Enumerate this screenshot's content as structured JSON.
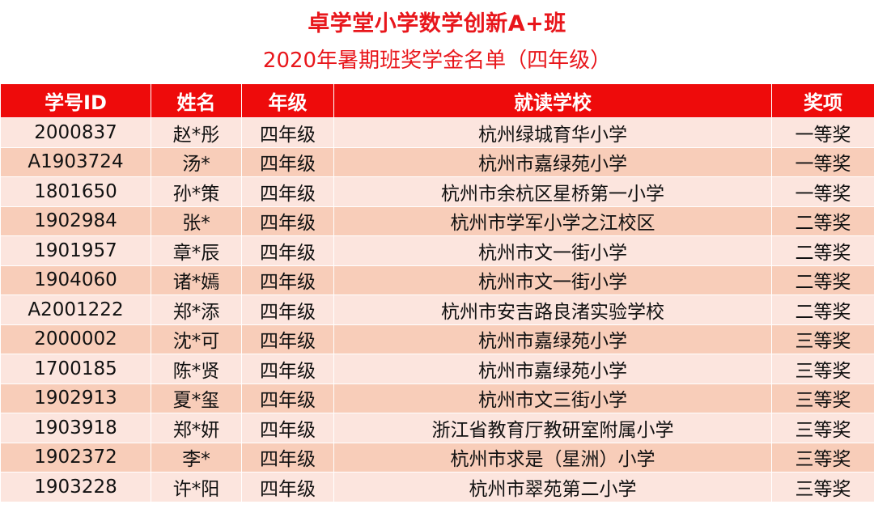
{
  "header": {
    "title": "卓学堂小学数学创新A+班",
    "subtitle": "2020年暑期班奖学金名单（四年级）"
  },
  "table": {
    "columns": [
      "学号ID",
      "姓名",
      "年级",
      "就读学校",
      "奖项"
    ],
    "rows": [
      [
        "2000837",
        "赵*彤",
        "四年级",
        "杭州绿城育华小学",
        "一等奖"
      ],
      [
        "A1903724",
        "汤*",
        "四年级",
        "杭州市嘉绿苑小学",
        "一等奖"
      ],
      [
        "1801650",
        "孙*策",
        "四年级",
        "杭州市余杭区星桥第一小学",
        "一等奖"
      ],
      [
        "1902984",
        "张*",
        "四年级",
        "杭州市学军小学之江校区",
        "二等奖"
      ],
      [
        "1901957",
        "章*辰",
        "四年级",
        "杭州市文一街小学",
        "二等奖"
      ],
      [
        "1904060",
        "诸*嫣",
        "四年级",
        "杭州市文一街小学",
        "二等奖"
      ],
      [
        "A2001222",
        "郑*添",
        "四年级",
        "杭州市安吉路良渚实验学校",
        "二等奖"
      ],
      [
        "2000002",
        "沈*可",
        "四年级",
        "杭州市嘉绿苑小学",
        "三等奖"
      ],
      [
        "1700185",
        "陈*贤",
        "四年级",
        "杭州市嘉绿苑小学",
        "三等奖"
      ],
      [
        "1902913",
        "夏*玺",
        "四年级",
        "杭州市文三街小学",
        "三等奖"
      ],
      [
        "1903918",
        "郑*妍",
        "四年级",
        "浙江省教育厅教研室附属小学",
        "三等奖"
      ],
      [
        "1902372",
        "李*",
        "四年级",
        "杭州市求是（星洲）小学",
        "三等奖"
      ],
      [
        "1903228",
        "许*阳",
        "四年级",
        "杭州市翠苑第二小学",
        "三等奖"
      ]
    ]
  },
  "colors": {
    "accent": "#e8161b",
    "header_bg": "#ee0b0b",
    "row_light": "#fce5de",
    "row_dark": "#f8cdb9"
  }
}
